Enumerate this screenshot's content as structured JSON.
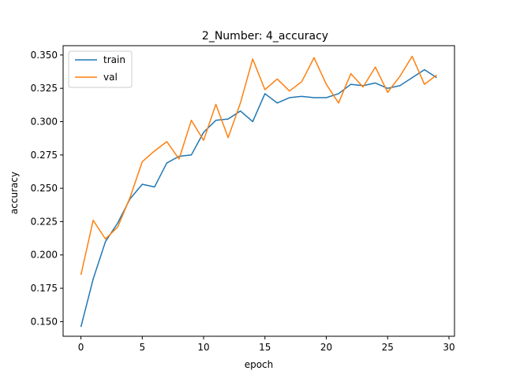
{
  "chart_data": {
    "type": "line",
    "title": "2_Number: 4_accuracy",
    "xlabel": "epoch",
    "ylabel": "accuracy",
    "xlim": [
      -1.45,
      30.45
    ],
    "ylim": [
      0.139,
      0.357
    ],
    "xticks": [
      0,
      5,
      10,
      15,
      20,
      25,
      30
    ],
    "yticks": [
      0.15,
      0.175,
      0.2,
      0.225,
      0.25,
      0.275,
      0.3,
      0.325,
      0.35
    ],
    "ytick_labels": [
      "0.150",
      "0.175",
      "0.200",
      "0.225",
      "0.250",
      "0.275",
      "0.300",
      "0.325",
      "0.350"
    ],
    "legend_position": "upper-left",
    "grid": false,
    "x": [
      0,
      1,
      2,
      3,
      4,
      5,
      6,
      7,
      8,
      9,
      10,
      11,
      12,
      13,
      14,
      15,
      16,
      17,
      18,
      19,
      20,
      21,
      22,
      23,
      24,
      25,
      26,
      27,
      28,
      29
    ],
    "series": [
      {
        "name": "train",
        "color": "#1f77b4",
        "values": [
          0.146,
          0.182,
          0.21,
          0.224,
          0.242,
          0.253,
          0.251,
          0.269,
          0.274,
          0.275,
          0.292,
          0.301,
          0.302,
          0.308,
          0.3,
          0.321,
          0.314,
          0.318,
          0.319,
          0.318,
          0.318,
          0.321,
          0.328,
          0.327,
          0.329,
          0.325,
          0.327,
          0.333,
          0.339,
          0.333
        ]
      },
      {
        "name": "val",
        "color": "#ff7f0e",
        "values": [
          0.185,
          0.226,
          0.212,
          0.221,
          0.243,
          0.27,
          0.278,
          0.285,
          0.272,
          0.301,
          0.286,
          0.313,
          0.288,
          0.314,
          0.347,
          0.324,
          0.332,
          0.323,
          0.33,
          0.348,
          0.328,
          0.314,
          0.336,
          0.326,
          0.341,
          0.322,
          0.334,
          0.349,
          0.328,
          0.335
        ]
      }
    ]
  }
}
